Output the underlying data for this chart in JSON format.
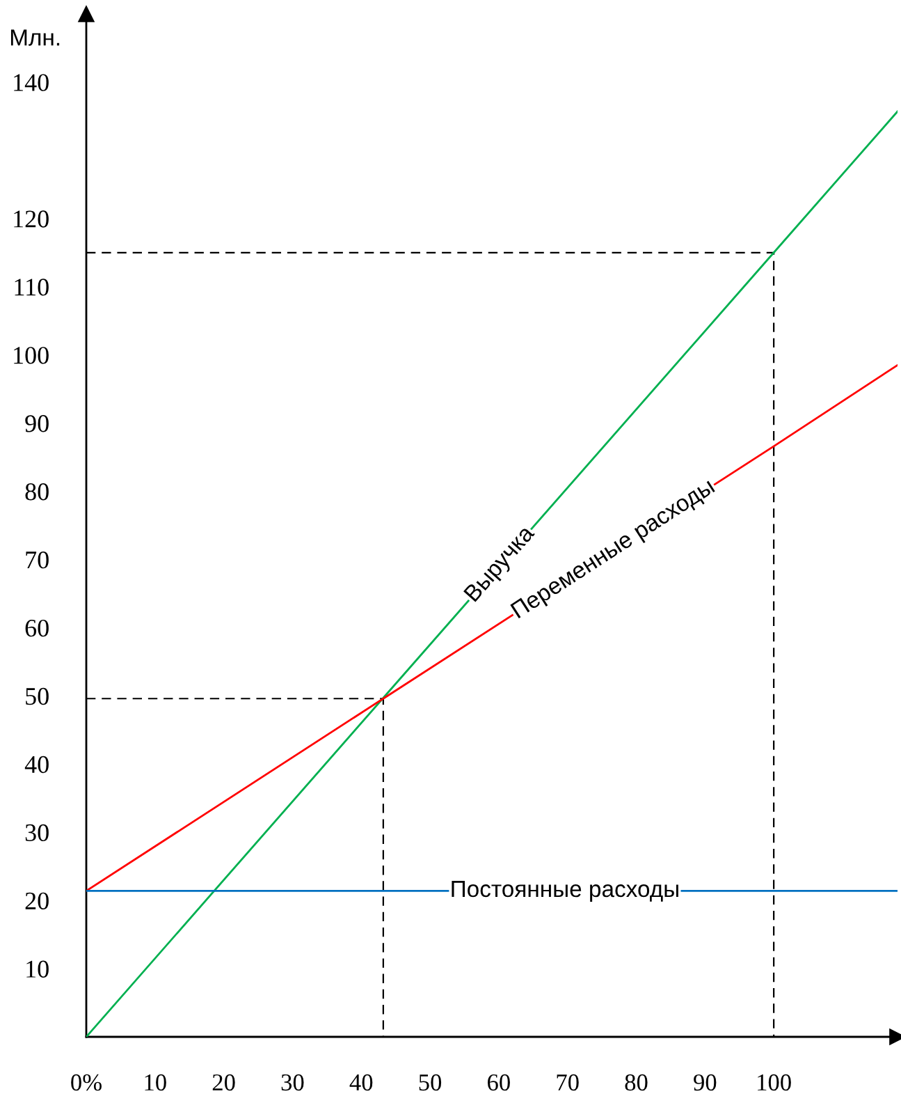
{
  "chart_data": {
    "type": "line",
    "ylabel": "Млн.",
    "xlim": [
      0,
      118
    ],
    "ylim": [
      0,
      150
    ],
    "xticks": [
      {
        "value": 0,
        "label": "0%"
      },
      10,
      20,
      30,
      40,
      50,
      60,
      70,
      80,
      90,
      100
    ],
    "yticks": [
      10,
      20,
      30,
      40,
      50,
      60,
      70,
      80,
      90,
      100,
      110,
      120,
      140
    ],
    "grid": false,
    "legend": false,
    "marker": "none",
    "series": [
      {
        "name": "Выручка",
        "color": "#00b050",
        "x": [
          0,
          43.2,
          100,
          118
        ],
        "values": [
          0,
          49.7,
          115,
          135.7
        ]
      },
      {
        "name": "Переменные расходы",
        "color": "#ff0000",
        "x": [
          0,
          43.2,
          100,
          118
        ],
        "values": [
          21.4,
          49.6,
          86.6,
          98.5
        ]
      },
      {
        "name": "Постоянные расходы",
        "color": "#0070c0",
        "x": [
          0,
          118
        ],
        "values": [
          21.4,
          21.4
        ]
      },
      {
        "color": "#000000",
        "line_style": "dashed",
        "x": [
          0,
          100,
          100
        ],
        "values": [
          115,
          115,
          0
        ]
      },
      {
        "color": "#000000",
        "line_style": "dashed",
        "x": [
          0,
          43.2,
          43.2
        ],
        "values": [
          49.6,
          49.6,
          0
        ]
      }
    ]
  }
}
